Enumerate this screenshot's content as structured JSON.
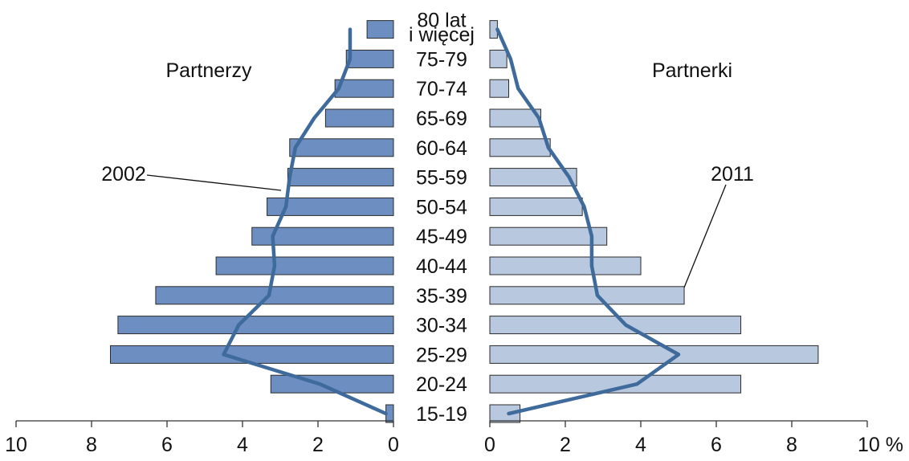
{
  "chart_data": {
    "type": "bar",
    "categories": [
      "15-19",
      "20-24",
      "25-29",
      "30-34",
      "35-39",
      "40-44",
      "45-49",
      "50-54",
      "55-59",
      "60-64",
      "65-69",
      "70-74",
      "75-79",
      "80 lat i więcej"
    ],
    "category_labels": [
      [
        "15-19"
      ],
      [
        "20-24"
      ],
      [
        "25-29"
      ],
      [
        "30-34"
      ],
      [
        "35-39"
      ],
      [
        "40-44"
      ],
      [
        "45-49"
      ],
      [
        "50-54"
      ],
      [
        "55-59"
      ],
      [
        "60-64"
      ],
      [
        "65-69"
      ],
      [
        "70-74"
      ],
      [
        "75-79"
      ],
      [
        "80 lat",
        "i więcej"
      ]
    ],
    "left_panel_label": "Partnerzy",
    "right_panel_label": "Partnerki",
    "bars": {
      "left": [
        0.2,
        3.25,
        7.5,
        7.3,
        6.3,
        4.7,
        3.75,
        3.35,
        2.8,
        2.75,
        1.8,
        1.55,
        1.25,
        0.7
      ],
      "right": [
        0.8,
        6.65,
        8.7,
        6.65,
        5.15,
        4.0,
        3.1,
        2.45,
        2.3,
        1.6,
        1.35,
        0.5,
        0.45,
        0.2
      ]
    },
    "lines": {
      "left": [
        0.2,
        1.95,
        4.5,
        4.1,
        3.3,
        3.15,
        3.2,
        2.85,
        2.75,
        2.6,
        2.1,
        1.45,
        1.15,
        1.15
      ],
      "right": [
        0.5,
        3.9,
        5.0,
        3.6,
        2.85,
        2.7,
        2.7,
        2.5,
        2.1,
        1.55,
        1.3,
        0.75,
        0.55,
        0.2
      ]
    },
    "annotations": {
      "left_line": "2002",
      "right_bars": "2011"
    },
    "x_axis": {
      "left_ticks": [
        "10",
        "8",
        "6",
        "4",
        "2",
        "0"
      ],
      "right_ticks": [
        "0",
        "2",
        "4",
        "6",
        "8",
        "10 %"
      ],
      "range": [
        0,
        10
      ]
    },
    "grid": false,
    "colors": {
      "left_bar": "#6D8EC0",
      "right_bar": "#B8C8DE",
      "line": "#3E6A9C",
      "bar_stroke": "#2b2b2b",
      "axis": "#333333"
    }
  }
}
